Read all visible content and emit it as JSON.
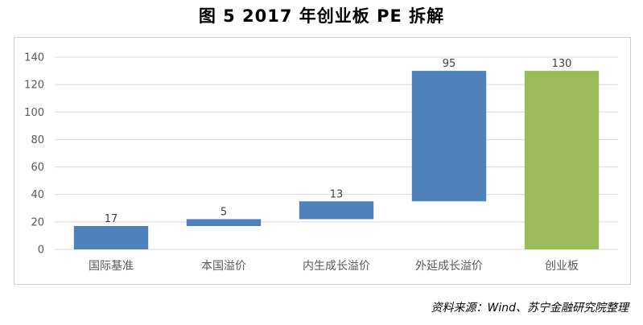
{
  "figure": {
    "title": "图 5  2017 年创业板 PE 拆解",
    "source": "资料来源：Wind、苏宁金融研究院整理"
  },
  "colors": {
    "bar_blue": "#4f81bd",
    "bar_green": "#9bbb59",
    "grid": "#d9d9d9",
    "axis_text": "#595959"
  },
  "chart_data": {
    "type": "bar",
    "subtype": "waterfall",
    "title": "",
    "xlabel": "",
    "ylabel": "",
    "ylim": [
      0,
      140
    ],
    "yticks": [
      0,
      20,
      40,
      60,
      80,
      100,
      120,
      140
    ],
    "grid": true,
    "legend": "none",
    "categories": [
      "国际基准",
      "本国溢价",
      "内生成长溢价",
      "外延成长溢价",
      "创业板"
    ],
    "values": [
      17,
      5,
      13,
      95,
      130
    ],
    "bar_bottoms": [
      0,
      17,
      22,
      35,
      0
    ],
    "bar_tops": [
      17,
      22,
      35,
      130,
      130
    ],
    "data_labels": [
      "17",
      "5",
      "13",
      "95",
      "130"
    ],
    "bar_colors": [
      "#4f81bd",
      "#4f81bd",
      "#4f81bd",
      "#4f81bd",
      "#9bbb59"
    ]
  }
}
